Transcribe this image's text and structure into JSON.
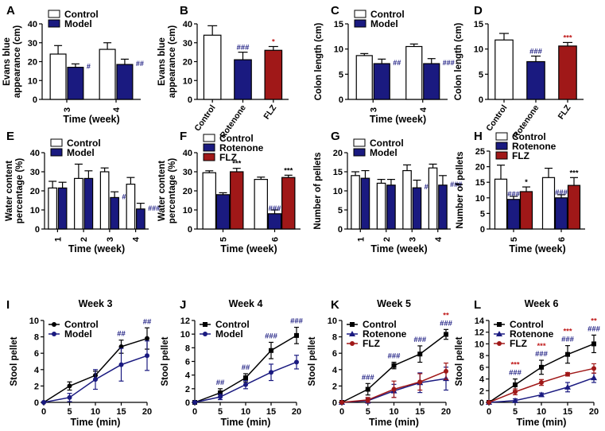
{
  "figure": {
    "colors": {
      "control": "#ffffff",
      "model": "#1a1a80",
      "flz": "#a01818",
      "sig_blue": "#1a1a80",
      "sig_red": "#c01a1a",
      "line_black": "#000000",
      "line_blue": "#1a1a80",
      "line_red": "#a01818"
    }
  },
  "chart_data": [
    {
      "panel": "A",
      "type": "bar",
      "layout": "grouped",
      "ylabel": "Evans blue appearance (cm)",
      "xlabel": "Time (week)",
      "ylim": [
        0,
        40
      ],
      "yticks": [
        0,
        10,
        20,
        30,
        40
      ],
      "categories": [
        "3",
        "4"
      ],
      "rotate_categories": true,
      "series": [
        {
          "name": "Control",
          "color": "#ffffff",
          "values": [
            24,
            26.5
          ],
          "errors": [
            4.5,
            3.5
          ],
          "sig": [
            "",
            ""
          ]
        },
        {
          "name": "Model",
          "color": "#1a1a80",
          "values": [
            17,
            18.5
          ],
          "errors": [
            1.8,
            2.8
          ],
          "sig": [
            "#",
            "##"
          ]
        }
      ],
      "legend": [
        "Control",
        "Model"
      ]
    },
    {
      "panel": "B",
      "type": "bar",
      "layout": "single",
      "ylabel": "Evans blue appearance (cm)",
      "xlabel": "",
      "ylim": [
        0,
        40
      ],
      "yticks": [
        0,
        10,
        20,
        30,
        40
      ],
      "categories": [
        "Control",
        "Rotenone",
        "FLZ"
      ],
      "colors": [
        "#ffffff",
        "#1a1a80",
        "#a01818"
      ],
      "values": [
        34,
        21,
        26
      ],
      "errors": [
        5,
        4,
        2
      ],
      "sig": [
        "",
        "###",
        "*"
      ],
      "sig_colors": [
        "",
        "#1a1a80",
        "#c01a1a"
      ]
    },
    {
      "panel": "C",
      "type": "bar",
      "layout": "grouped",
      "ylabel": "Colon length (cm)",
      "xlabel": "Time (week)",
      "ylim": [
        0,
        15
      ],
      "yticks": [
        0,
        5,
        10,
        15
      ],
      "categories": [
        "3",
        "4"
      ],
      "rotate_categories": true,
      "series": [
        {
          "name": "Control",
          "color": "#ffffff",
          "values": [
            8.7,
            10.5
          ],
          "errors": [
            0.4,
            0.5
          ],
          "sig": [
            "",
            ""
          ]
        },
        {
          "name": "Model",
          "color": "#1a1a80",
          "values": [
            7.1,
            7.1
          ],
          "errors": [
            0.9,
            1.0
          ],
          "sig": [
            "##",
            "###"
          ]
        }
      ],
      "legend": [
        "Control",
        "Model"
      ]
    },
    {
      "panel": "D",
      "type": "bar",
      "layout": "single",
      "ylabel": "Colon length (cm)",
      "xlabel": "",
      "ylim": [
        0,
        15
      ],
      "yticks": [
        0,
        5,
        10,
        15
      ],
      "categories": [
        "Control",
        "Rotenone",
        "FLZ"
      ],
      "colors": [
        "#ffffff",
        "#1a1a80",
        "#a01818"
      ],
      "values": [
        11.8,
        7.5,
        10.6
      ],
      "errors": [
        1.3,
        1.1,
        0.7
      ],
      "sig": [
        "",
        "###",
        "***"
      ],
      "sig_colors": [
        "",
        "#1a1a80",
        "#c01a1a"
      ]
    },
    {
      "panel": "E",
      "type": "bar",
      "layout": "grouped",
      "ylabel": "Water content percentage (%)",
      "xlabel": "Time (week)",
      "ylim": [
        0,
        40
      ],
      "yticks": [
        0,
        10,
        20,
        30,
        40
      ],
      "categories": [
        "1",
        "2",
        "3",
        "4"
      ],
      "rotate_categories": true,
      "series": [
        {
          "name": "Control",
          "color": "#ffffff",
          "values": [
            21.5,
            26.5,
            30,
            23.5
          ],
          "errors": [
            3.5,
            7.5,
            2,
            3.5
          ],
          "sig": [
            "",
            "",
            "",
            ""
          ]
        },
        {
          "name": "Model",
          "color": "#1a1a80",
          "values": [
            21.5,
            26.5,
            16.5,
            10.5
          ],
          "errors": [
            3,
            4,
            3,
            3
          ],
          "sig": [
            "",
            "",
            "###",
            "###"
          ]
        }
      ],
      "legend": [
        "Control",
        "Model"
      ]
    },
    {
      "panel": "F",
      "type": "bar",
      "layout": "grouped",
      "ylabel": "Water content percentage (%)",
      "xlabel": "Time (week)",
      "ylim": [
        0,
        40
      ],
      "yticks": [
        0,
        10,
        20,
        30,
        40
      ],
      "categories": [
        "5",
        "6"
      ],
      "rotate_categories": true,
      "series": [
        {
          "name": "Control",
          "color": "#ffffff",
          "values": [
            29.5,
            26
          ],
          "errors": [
            1,
            1.2
          ],
          "sig": [
            "",
            ""
          ],
          "sig_color": ""
        },
        {
          "name": "Rotenone",
          "color": "#1a1a80",
          "values": [
            18,
            8
          ],
          "errors": [
            1,
            2
          ],
          "sig": [
            "",
            "###"
          ],
          "sig_color": "#1a1a80"
        },
        {
          "name": "FLZ",
          "color": "#a01818",
          "values": [
            30,
            27
          ],
          "errors": [
            1.8,
            1.2
          ],
          "sig": [
            "***",
            "***"
          ],
          "sig_color": "#000000"
        }
      ],
      "legend": [
        "Control",
        "Rotenone",
        "FLZ"
      ]
    },
    {
      "panel": "G",
      "type": "bar",
      "layout": "grouped",
      "ylabel": "Number of pellets",
      "xlabel": "Time (week)",
      "ylim": [
        0,
        20
      ],
      "yticks": [
        0,
        5,
        10,
        15,
        20
      ],
      "categories": [
        "1",
        "2",
        "3",
        "4"
      ],
      "rotate_categories": true,
      "series": [
        {
          "name": "Control",
          "color": "#ffffff",
          "values": [
            14,
            12,
            15.3,
            16
          ],
          "errors": [
            1,
            1,
            1.5,
            1
          ],
          "sig": [
            "",
            "",
            "",
            ""
          ]
        },
        {
          "name": "Model",
          "color": "#1a1a80",
          "values": [
            13.3,
            11.5,
            10.8,
            11.5
          ],
          "errors": [
            2,
            1.5,
            2,
            2.5
          ],
          "sig": [
            "",
            "",
            "###",
            "###"
          ]
        }
      ],
      "legend": [
        "Control",
        "Model"
      ]
    },
    {
      "panel": "H",
      "type": "bar",
      "layout": "grouped",
      "ylabel": "Number of pellets",
      "xlabel": "Time (week)",
      "ylim": [
        0,
        25
      ],
      "yticks": [
        0,
        5,
        10,
        15,
        20,
        25
      ],
      "categories": [
        "5",
        "6"
      ],
      "rotate_categories": true,
      "series": [
        {
          "name": "Control",
          "color": "#ffffff",
          "values": [
            16,
            16.5
          ],
          "errors": [
            4.5,
            3
          ],
          "sig": [
            "",
            ""
          ],
          "sig_color": ""
        },
        {
          "name": "Rotenone",
          "color": "#1a1a80",
          "values": [
            9.5,
            10
          ],
          "errors": [
            1,
            1
          ],
          "sig": [
            "###",
            "###"
          ],
          "sig_color": "#1a1a80"
        },
        {
          "name": "FLZ",
          "color": "#a01818",
          "values": [
            12,
            14
          ],
          "errors": [
            1.5,
            2.5
          ],
          "sig": [
            "*",
            "***"
          ],
          "sig_color": "#000000"
        }
      ],
      "legend": [
        "Control",
        "Rotenone",
        "FLZ"
      ]
    },
    {
      "panel": "I",
      "type": "line",
      "title": "Week 3",
      "xlabel": "Time (min)",
      "ylabel": "Stool pellet",
      "xlim": [
        0,
        20
      ],
      "xticks": [
        0,
        5,
        10,
        15,
        20
      ],
      "ylim": [
        0,
        10
      ],
      "yticks": [
        0,
        2,
        4,
        6,
        8,
        10
      ],
      "x": [
        0,
        5,
        10,
        15,
        20
      ],
      "series": [
        {
          "name": "Control",
          "color": "#000000",
          "marker": "circle",
          "values": [
            0,
            2,
            3.3,
            6.8,
            7.8
          ],
          "errors": [
            0,
            0.5,
            0.5,
            0.8,
            1.3
          ]
        },
        {
          "name": "Model",
          "color": "#1a1a80",
          "marker": "circle",
          "values": [
            0,
            0.6,
            2.8,
            4.6,
            5.7
          ],
          "errors": [
            0,
            0.5,
            1.2,
            2,
            1.8
          ]
        }
      ],
      "legend": [
        "Control",
        "Model"
      ],
      "sig": [
        {
          "x": 15,
          "rows": [
            "##"
          ],
          "colors": [
            "#1a1a80"
          ]
        },
        {
          "x": 20,
          "rows": [
            "##"
          ],
          "colors": [
            "#1a1a80"
          ]
        }
      ]
    },
    {
      "panel": "J",
      "type": "line",
      "title": "Week 4",
      "xlabel": "Time (min)",
      "ylabel": "Stool pellet",
      "xlim": [
        0,
        20
      ],
      "xticks": [
        0,
        5,
        10,
        15,
        20
      ],
      "ylim": [
        0,
        12
      ],
      "yticks": [
        0,
        2,
        4,
        6,
        8,
        10,
        12
      ],
      "x": [
        0,
        5,
        10,
        15,
        20
      ],
      "series": [
        {
          "name": "Control",
          "color": "#000000",
          "marker": "square",
          "values": [
            0,
            1.4,
            3.6,
            7.6,
            9.8
          ],
          "errors": [
            0,
            0.6,
            0.6,
            1.2,
            1.2
          ]
        },
        {
          "name": "Model",
          "color": "#1a1a80",
          "marker": "circle",
          "values": [
            0,
            0.8,
            2.6,
            4.4,
            5.9
          ],
          "errors": [
            0,
            0.4,
            0.6,
            1.2,
            1
          ]
        }
      ],
      "legend": [
        "Control",
        "Model"
      ],
      "sig": [
        {
          "x": 5,
          "rows": [
            "##"
          ],
          "colors": [
            "#1a1a80"
          ]
        },
        {
          "x": 10,
          "rows": [
            "##"
          ],
          "colors": [
            "#1a1a80"
          ]
        },
        {
          "x": 15,
          "rows": [
            "###"
          ],
          "colors": [
            "#1a1a80"
          ]
        },
        {
          "x": 20,
          "rows": [
            "###"
          ],
          "colors": [
            "#1a1a80"
          ]
        }
      ]
    },
    {
      "panel": "K",
      "type": "line",
      "title": "Week 5",
      "xlabel": "Time (min)",
      "ylabel": "Stool pellet",
      "xlim": [
        0,
        20
      ],
      "xticks": [
        0,
        5,
        10,
        15,
        20
      ],
      "ylim": [
        0,
        10
      ],
      "yticks": [
        0,
        2,
        4,
        6,
        8,
        10
      ],
      "x": [
        0,
        5,
        10,
        15,
        20
      ],
      "series": [
        {
          "name": "Control",
          "color": "#000000",
          "marker": "square",
          "values": [
            0,
            1.6,
            4.5,
            5.9,
            8.3
          ],
          "errors": [
            0,
            0.7,
            0.4,
            1,
            0.6
          ]
        },
        {
          "name": "Rotenone",
          "color": "#1a1a80",
          "marker": "triangle",
          "values": [
            0,
            0.2,
            1.4,
            2.4,
            2.9
          ],
          "errors": [
            0,
            0.3,
            0.8,
            1.2,
            1.4
          ]
        },
        {
          "name": "FLZ",
          "color": "#a01818",
          "marker": "circle",
          "values": [
            0,
            0.3,
            1.6,
            2.5,
            3.8
          ],
          "errors": [
            0,
            0.3,
            1,
            1,
            1
          ]
        }
      ],
      "legend": [
        "Control",
        "Rotenone",
        "FLZ"
      ],
      "sig": [
        {
          "x": 5,
          "rows": [
            "###"
          ],
          "colors": [
            "#1a1a80"
          ]
        },
        {
          "x": 10,
          "rows": [
            "###"
          ],
          "colors": [
            "#1a1a80"
          ]
        },
        {
          "x": 15,
          "rows": [
            "###"
          ],
          "colors": [
            "#1a1a80"
          ]
        },
        {
          "x": 20,
          "rows": [
            "**",
            "###"
          ],
          "colors": [
            "#c01a1a",
            "#1a1a80"
          ]
        }
      ]
    },
    {
      "panel": "L",
      "type": "line",
      "title": "Week 6",
      "xlabel": "Time (min)",
      "ylabel": "Stool pellet",
      "xlim": [
        0,
        20
      ],
      "xticks": [
        0,
        5,
        10,
        15,
        20
      ],
      "ylim": [
        0,
        14
      ],
      "yticks": [
        0,
        2,
        4,
        6,
        8,
        10,
        12,
        14
      ],
      "x": [
        0,
        5,
        10,
        15,
        20
      ],
      "series": [
        {
          "name": "Control",
          "color": "#000000",
          "marker": "square",
          "values": [
            0,
            3,
            6,
            8.2,
            10
          ],
          "errors": [
            0,
            1,
            1.2,
            1.5,
            1.5
          ]
        },
        {
          "name": "Rotenone",
          "color": "#1a1a80",
          "marker": "triangle",
          "values": [
            0,
            0.3,
            1.3,
            2.6,
            4.2
          ],
          "errors": [
            0,
            0.3,
            0.3,
            0.8,
            0.8
          ]
        },
        {
          "name": "FLZ",
          "color": "#a01818",
          "marker": "circle",
          "values": [
            0,
            1.8,
            3.4,
            4.8,
            5.8
          ],
          "errors": [
            0,
            0.5,
            0.5,
            0.3,
            0.8
          ]
        }
      ],
      "legend": [
        "Control",
        "Rotenone",
        "FLZ"
      ],
      "sig": [
        {
          "x": 5,
          "rows": [
            "***",
            "###"
          ],
          "colors": [
            "#c01a1a",
            "#1a1a80"
          ]
        },
        {
          "x": 10,
          "rows": [
            "***",
            "###"
          ],
          "colors": [
            "#c01a1a",
            "#1a1a80"
          ]
        },
        {
          "x": 15,
          "rows": [
            "***",
            "###"
          ],
          "colors": [
            "#c01a1a",
            "#1a1a80"
          ]
        },
        {
          "x": 20,
          "rows": [
            "**",
            "###"
          ],
          "colors": [
            "#c01a1a",
            "#1a1a80"
          ]
        }
      ]
    }
  ]
}
